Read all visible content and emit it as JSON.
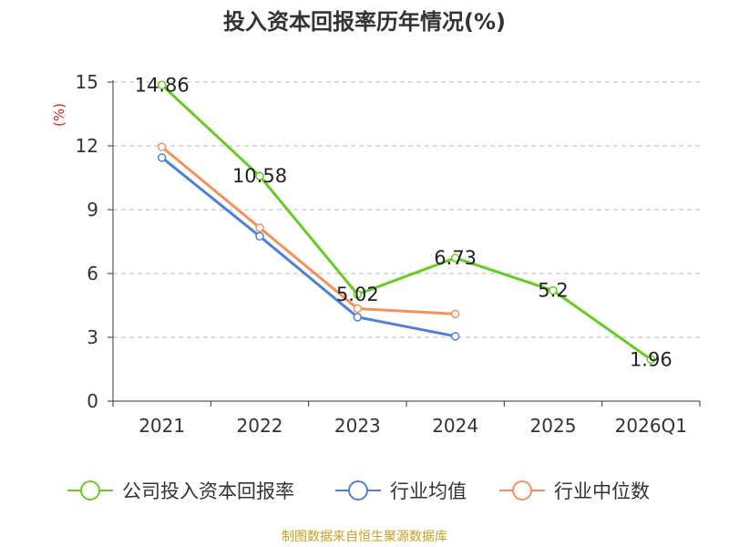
{
  "chart_data": {
    "type": "line",
    "title": "投入资本回报率历年情况(%)",
    "ylabel": "(%)",
    "xlabel": "",
    "categories": [
      "2021",
      "2022",
      "2023",
      "2024",
      "2025",
      "2026Q1"
    ],
    "y_ticks": [
      0,
      3,
      6,
      9,
      12,
      15
    ],
    "ylim": [
      0,
      15
    ],
    "grid": true,
    "legend_position": "bottom",
    "series": [
      {
        "name": "公司投入资本回报率",
        "color": "#66cc22",
        "values": [
          14.86,
          10.58,
          5.02,
          6.73,
          5.2,
          1.96
        ],
        "labels": [
          "14.86",
          "10.58",
          "5.02",
          "6.73",
          "5.2",
          "1.96"
        ]
      },
      {
        "name": "行业均值",
        "color": "#4f7fdc",
        "values": [
          11.45,
          7.75,
          3.95,
          3.05,
          null,
          null
        ]
      },
      {
        "name": "行业中位数",
        "color": "#f5905a",
        "values": [
          11.95,
          8.15,
          4.35,
          4.1,
          null,
          null
        ]
      }
    ]
  },
  "footer": {
    "source": "制图数据来自恒生聚源数据库"
  }
}
